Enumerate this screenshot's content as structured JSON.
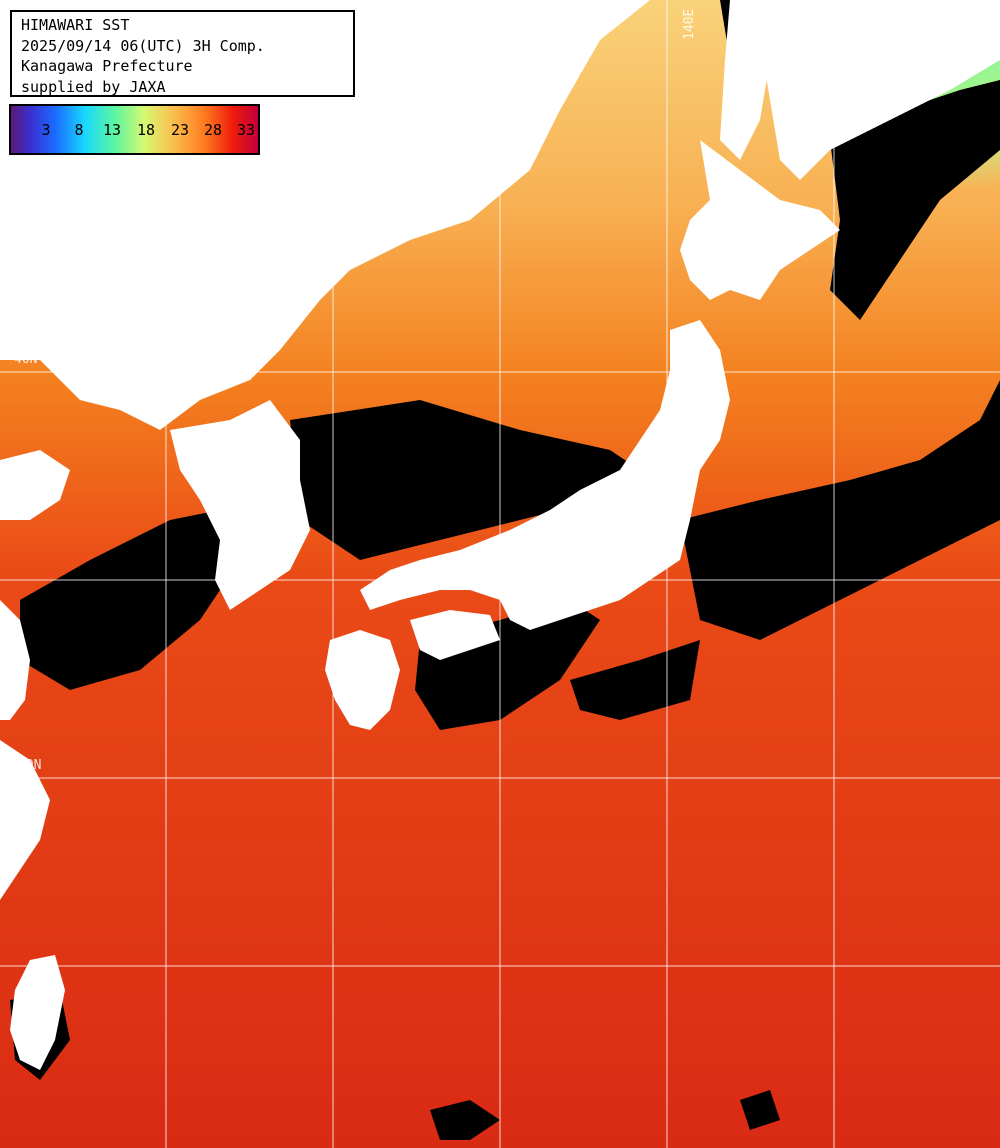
{
  "header": {
    "line1": "HIMAWARI SST",
    "line2": "2025/09/14 06(UTC) 3H Comp.",
    "line3": "Kanagawa Prefecture",
    "line4": "supplied by JAXA"
  },
  "legend": {
    "ticks": [
      "3",
      "8",
      "13",
      "18",
      "23",
      "28",
      "33"
    ]
  },
  "grid_labels": {
    "lat40": "40N",
    "lat30": "30N",
    "lon140": "140E"
  },
  "colors": {
    "ocean_warm": "#d92a14",
    "ocean_mid": "#f4701c",
    "ocean_cool": "#f9c060",
    "ocean_cold": "#8ff57c",
    "land": "#ffffff",
    "cloud": "#000000",
    "grid": "#ffffff"
  }
}
